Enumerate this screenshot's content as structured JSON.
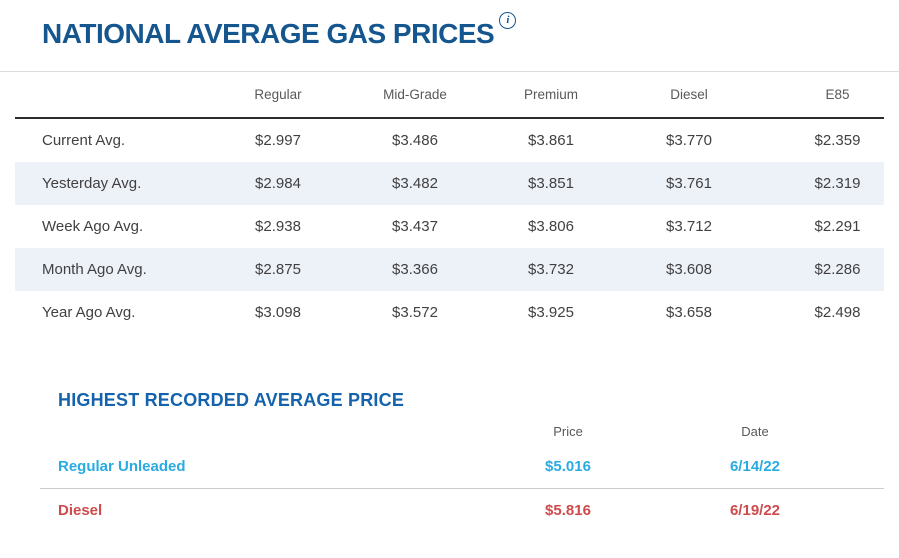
{
  "header": {
    "title": "NATIONAL AVERAGE GAS PRICES",
    "info_icon_glyph": "i"
  },
  "gas_table": {
    "columns": [
      "Regular",
      "Mid-Grade",
      "Premium",
      "Diesel",
      "E85"
    ],
    "rows": [
      {
        "label": "Current Avg.",
        "values": [
          "$2.997",
          "$3.486",
          "$3.861",
          "$3.770",
          "$2.359"
        ]
      },
      {
        "label": "Yesterday Avg.",
        "values": [
          "$2.984",
          "$3.482",
          "$3.851",
          "$3.761",
          "$2.319"
        ]
      },
      {
        "label": "Week Ago Avg.",
        "values": [
          "$2.938",
          "$3.437",
          "$3.806",
          "$3.712",
          "$2.291"
        ]
      },
      {
        "label": "Month Ago Avg.",
        "values": [
          "$2.875",
          "$3.366",
          "$3.732",
          "$3.608",
          "$2.286"
        ]
      },
      {
        "label": "Year Ago Avg.",
        "values": [
          "$3.098",
          "$3.572",
          "$3.925",
          "$3.658",
          "$2.498"
        ]
      }
    ]
  },
  "highest_recorded": {
    "title": "HIGHEST RECORDED AVERAGE PRICE",
    "columns": [
      "Price",
      "Date"
    ],
    "rows": [
      {
        "label": "Regular Unleaded",
        "price": "$5.016",
        "date": "6/14/22"
      },
      {
        "label": "Diesel",
        "price": "$5.816",
        "date": "6/19/22"
      }
    ]
  },
  "colors": {
    "title_blue": "#15568f",
    "section_heading_blue": "#1563ac",
    "column_header_gray": "#58595b",
    "body_text_gray": "#414042",
    "alt_row_background": "#edf2f8",
    "regular_unleaded_accent": "#29abe2",
    "diesel_accent": "#cf4a4c"
  }
}
